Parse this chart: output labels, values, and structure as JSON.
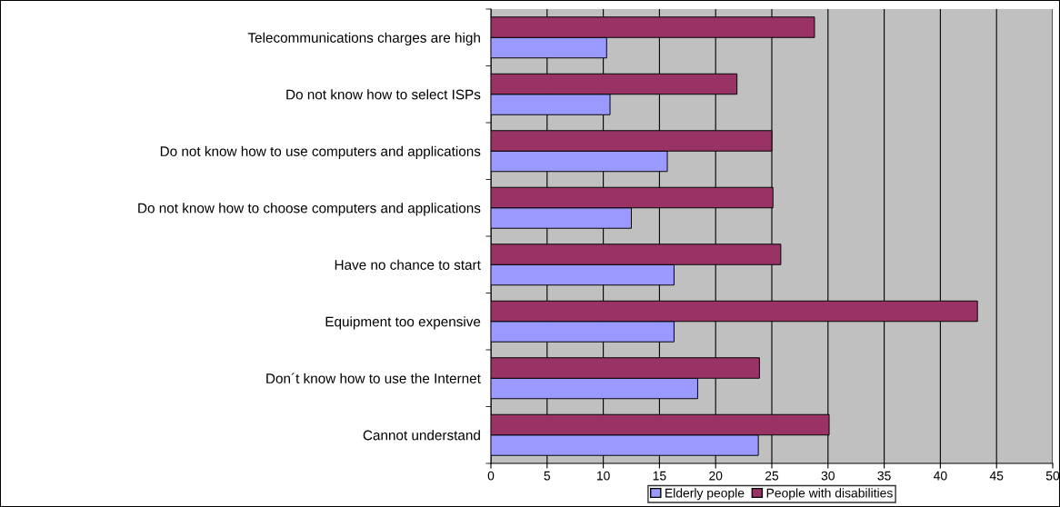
{
  "chart_data": {
    "type": "bar",
    "orientation": "horizontal",
    "categories": [
      "Telecommunications charges are high",
      "Do not know how to select ISPs",
      "Do not know how to use computers and applications",
      "Do not know how to choose computers and applications",
      "Have no chance to start",
      "Equipment too expensive",
      "Don´t know how to use the Internet",
      "Cannot understand"
    ],
    "series": [
      {
        "name": "Elderly people",
        "color": "#9999ff",
        "values": [
          10.3,
          10.6,
          15.7,
          12.5,
          16.3,
          16.3,
          18.4,
          23.8
        ]
      },
      {
        "name": "People with disabilities",
        "color": "#993366",
        "values": [
          28.8,
          21.9,
          25.0,
          25.1,
          25.8,
          43.3,
          23.9,
          30.1
        ]
      }
    ],
    "xlim": [
      0,
      50
    ],
    "xticks": [
      0,
      5,
      10,
      15,
      20,
      25,
      30,
      35,
      40,
      45,
      50
    ],
    "grid": "x",
    "legend": "bottom"
  }
}
